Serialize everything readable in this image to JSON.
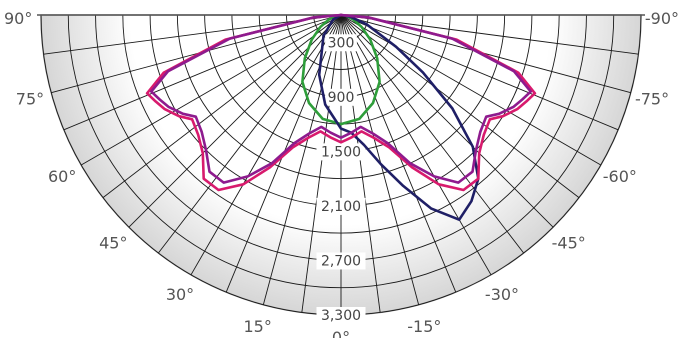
{
  "chart_data": {
    "type": "polar",
    "angle_unit": "degrees",
    "angle_range": [
      -90,
      90
    ],
    "radial_range": [
      0,
      3300
    ],
    "grid": true,
    "angle_ticks": [
      "90°",
      "75°",
      "60°",
      "45°",
      "30°",
      "15°",
      "0°",
      "-15°",
      "-30°",
      "-45°",
      "-60°",
      "-75°",
      "-90°"
    ],
    "radial_ticks": [
      "300",
      "900",
      "1,500",
      "2,100",
      "2,700",
      "3,300"
    ],
    "series": [
      {
        "color": "#2e9e3a",
        "points": [
          [
            -90,
            0
          ],
          [
            -80,
            60
          ],
          [
            -70,
            140
          ],
          [
            -60,
            260
          ],
          [
            -50,
            420
          ],
          [
            -40,
            620
          ],
          [
            -30,
            850
          ],
          [
            -20,
            1030
          ],
          [
            -10,
            1160
          ],
          [
            0,
            1200
          ],
          [
            10,
            1160
          ],
          [
            20,
            1030
          ],
          [
            30,
            850
          ],
          [
            40,
            620
          ],
          [
            50,
            420
          ],
          [
            60,
            260
          ],
          [
            70,
            140
          ],
          [
            80,
            60
          ],
          [
            90,
            0
          ]
        ]
      },
      {
        "color": "#1f1f66",
        "points": [
          [
            -90,
            0
          ],
          [
            -80,
            100
          ],
          [
            -70,
            300
          ],
          [
            -60,
            700
          ],
          [
            -55,
            1100
          ],
          [
            -50,
            1600
          ],
          [
            -45,
            2050
          ],
          [
            -40,
            2350
          ],
          [
            -35,
            2500
          ],
          [
            -30,
            2600
          ],
          [
            -25,
            2350
          ],
          [
            -20,
            2000
          ],
          [
            -15,
            1700
          ],
          [
            -10,
            1450
          ],
          [
            -5,
            1300
          ],
          [
            0,
            1250
          ],
          [
            10,
            1000
          ],
          [
            20,
            700
          ],
          [
            40,
            300
          ],
          [
            60,
            100
          ],
          [
            90,
            0
          ]
        ]
      },
      {
        "color": "#d81a6d",
        "points": [
          [
            -90,
            0
          ],
          [
            -85,
            300
          ],
          [
            -78,
            1300
          ],
          [
            -72,
            2050
          ],
          [
            -68,
            2300
          ],
          [
            -65,
            2250
          ],
          [
            -62,
            2200
          ],
          [
            -58,
            2100
          ],
          [
            -55,
            2000
          ],
          [
            -50,
            2050
          ],
          [
            -45,
            2150
          ],
          [
            -40,
            2350
          ],
          [
            -35,
            2350
          ],
          [
            -30,
            2150
          ],
          [
            -25,
            1850
          ],
          [
            -20,
            1550
          ],
          [
            -15,
            1400
          ],
          [
            -10,
            1300
          ],
          [
            -5,
            1350
          ],
          [
            0,
            1400
          ],
          [
            5,
            1350
          ],
          [
            10,
            1300
          ],
          [
            15,
            1400
          ],
          [
            20,
            1550
          ],
          [
            25,
            1850
          ],
          [
            30,
            2150
          ],
          [
            35,
            2350
          ],
          [
            40,
            2350
          ],
          [
            45,
            2150
          ],
          [
            50,
            2050
          ],
          [
            55,
            2000
          ],
          [
            58,
            2100
          ],
          [
            62,
            2200
          ],
          [
            65,
            2250
          ],
          [
            68,
            2300
          ],
          [
            72,
            2050
          ],
          [
            78,
            1300
          ],
          [
            85,
            300
          ],
          [
            90,
            0
          ]
        ]
      },
      {
        "color": "#8e1b8e",
        "points": [
          [
            -90,
            0
          ],
          [
            -85,
            300
          ],
          [
            -78,
            1250
          ],
          [
            -72,
            2000
          ],
          [
            -68,
            2250
          ],
          [
            -65,
            2200
          ],
          [
            -62,
            2150
          ],
          [
            -58,
            2050
          ],
          [
            -55,
            1950
          ],
          [
            -50,
            2000
          ],
          [
            -45,
            2100
          ],
          [
            -40,
            2250
          ],
          [
            -35,
            2250
          ],
          [
            -30,
            2050
          ],
          [
            -25,
            1800
          ],
          [
            -20,
            1500
          ],
          [
            -15,
            1350
          ],
          [
            -10,
            1250
          ],
          [
            -5,
            1300
          ],
          [
            0,
            1350
          ],
          [
            5,
            1300
          ],
          [
            10,
            1250
          ],
          [
            15,
            1350
          ],
          [
            20,
            1500
          ],
          [
            25,
            1800
          ],
          [
            30,
            2050
          ],
          [
            35,
            2250
          ],
          [
            40,
            2250
          ],
          [
            45,
            2100
          ],
          [
            50,
            2000
          ],
          [
            55,
            1950
          ],
          [
            58,
            2050
          ],
          [
            62,
            2150
          ],
          [
            65,
            2200
          ],
          [
            68,
            2250
          ],
          [
            72,
            2000
          ],
          [
            78,
            1250
          ],
          [
            85,
            300
          ],
          [
            90,
            0
          ]
        ]
      }
    ]
  }
}
